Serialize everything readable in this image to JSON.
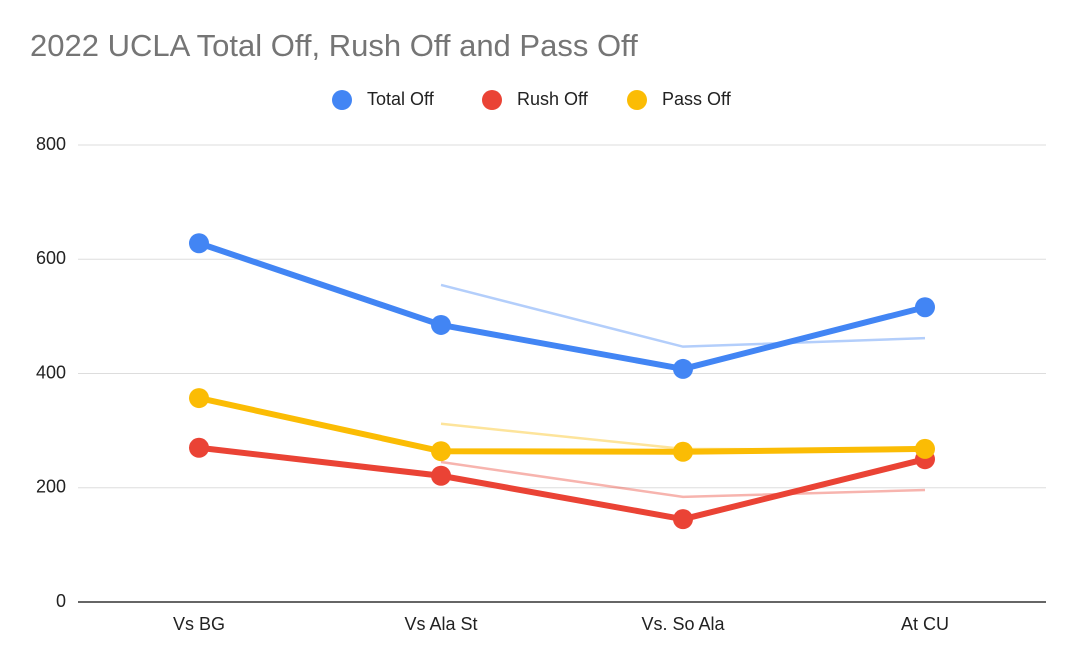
{
  "chart_data": {
    "type": "line",
    "title": "2022 UCLA Total Off, Rush Off and Pass Off",
    "categories": [
      "Vs BG",
      "Vs Ala St",
      "Vs. So Ala",
      "At CU"
    ],
    "series": [
      {
        "name": "Total Off",
        "color": "#4285f4",
        "values": [
          628,
          485,
          408,
          516
        ],
        "trend_values": [
          null,
          555,
          447,
          462
        ]
      },
      {
        "name": "Rush Off",
        "color": "#ea4335",
        "values": [
          270,
          221,
          145,
          250
        ],
        "trend_values": [
          null,
          245,
          184,
          196
        ]
      },
      {
        "name": "Pass Off",
        "color": "#fbbc04",
        "values": [
          357,
          264,
          263,
          268
        ],
        "trend_values": [
          null,
          312,
          268,
          266
        ]
      }
    ],
    "ylim": [
      0,
      800
    ],
    "yticks": [
      0,
      200,
      400,
      600,
      800
    ],
    "grid": true,
    "legend": "top"
  }
}
